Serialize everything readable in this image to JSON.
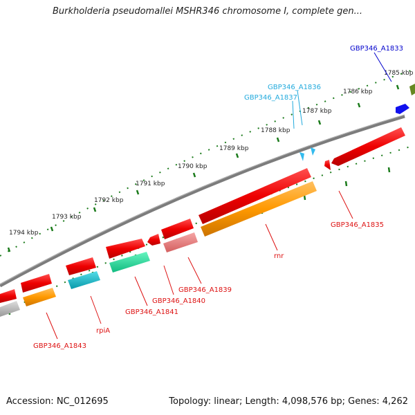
{
  "title": "Burkholderia pseudomallei MSHR346 chromosome I, complete gen...",
  "footer": {
    "accession": "Accession: NC_012695",
    "topology": "Topology: linear; Length: 4,098,576 bp; Genes: 4,262"
  },
  "map": {
    "type": "linear genome map segment",
    "scale_labels": [
      "1785 kbp",
      "1786 kbp",
      "1787 kbp",
      "1788 kbp",
      "1789 kbp",
      "1790 kbp",
      "1791 kbp",
      "1792 kbp",
      "1793 kbp",
      "1794 kbp"
    ],
    "gene_labels": [
      {
        "text": "GBP346_A1833",
        "color": "#0000cc"
      },
      {
        "text": "GBP346_A1836",
        "color": "#22aadd"
      },
      {
        "text": "GBP346_A1837",
        "color": "#22aadd"
      },
      {
        "text": "GBP346_A1835",
        "color": "#dd1111"
      },
      {
        "text": "rnr",
        "color": "#dd1111"
      },
      {
        "text": "GBP346_A1839",
        "color": "#dd1111"
      },
      {
        "text": "GBP346_A1840",
        "color": "#dd1111"
      },
      {
        "text": "GBP346_A1841",
        "color": "#dd1111"
      },
      {
        "text": "rpiA",
        "color": "#dd1111"
      },
      {
        "text": "GBP346_A1843",
        "color": "#dd1111"
      }
    ],
    "colors": {
      "backbone": "#808080",
      "tick": "#1a7a1a",
      "cds_red": "#ee0000",
      "orange": "#ff9900",
      "pink": "#ee7777",
      "green": "#22dd99",
      "teal": "#11bbcc",
      "cyan": "#33bbee",
      "blue": "#1111ee",
      "olive": "#668822",
      "gray": "#bbbbbb"
    }
  }
}
